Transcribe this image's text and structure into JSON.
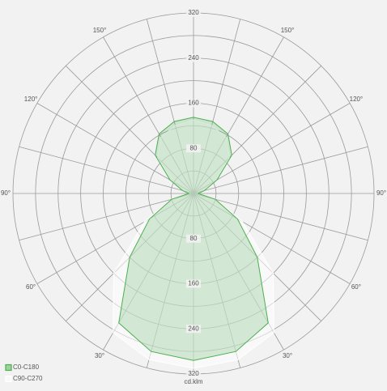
{
  "chart_data": {
    "type": "polar",
    "unit_label": "cd.klm",
    "angles": [
      0,
      15,
      30,
      45,
      60,
      75,
      90,
      105,
      120,
      135,
      150,
      165,
      180
    ],
    "series": [
      {
        "name": "C90-C270",
        "color": "#ffffff",
        "values": [
          310,
          305,
          285,
          200,
          100,
          40,
          8,
          20,
          45,
          90,
          115,
          125,
          130
        ]
      },
      {
        "name": "C0-C180",
        "color": "#4caf50",
        "values": [
          296,
          290,
          265,
          160,
          90,
          40,
          8,
          20,
          48,
          96,
          122,
          132,
          135
        ]
      }
    ],
    "rlim": [
      0,
      320
    ],
    "rticks": [
      80,
      160,
      240,
      320
    ],
    "rminor": [
      40,
      120,
      200,
      280
    ],
    "angle_grid_step": 15,
    "angle_ticks": [
      {
        "value": 30,
        "label": "30°"
      },
      {
        "value": 60,
        "label": "60°"
      },
      {
        "value": 90,
        "label": "90°"
      },
      {
        "value": 120,
        "label": "120°"
      },
      {
        "value": 150,
        "label": "150°"
      }
    ],
    "grid": true,
    "legend": "bottom-left"
  }
}
